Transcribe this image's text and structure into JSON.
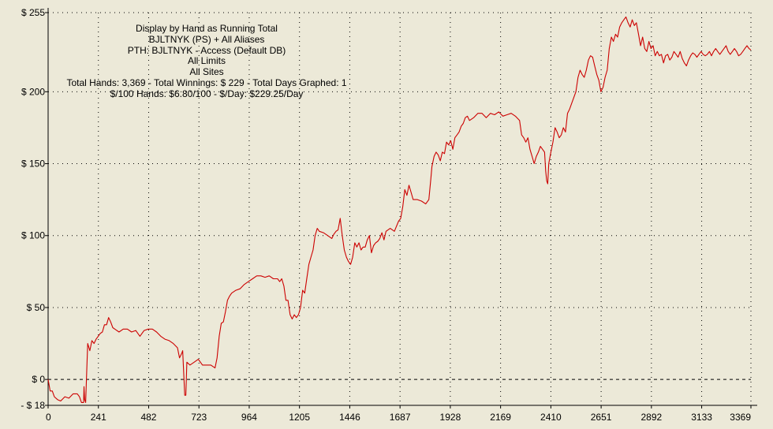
{
  "info": {
    "line1": "Display by Hand as Running Total",
    "line2": "BJLTNYK (PS) + All Aliases",
    "line3": "PTH: BJLTNYK - Access (Default DB)",
    "line4": "All Limits",
    "line5": "All Sites",
    "line6": "Total Hands: 3,369 - Total Winnings: $ 229 - Total Days Graphed: 1",
    "line7": "$/100 Hands: $6.80/100 - $/Day: $229.25/Day"
  },
  "colors": {
    "background": "#ECE9D8",
    "line": "#CC0000",
    "grid": "#000000"
  },
  "chart_data": {
    "type": "line",
    "grid": "dotted",
    "xlim": [
      0,
      3369
    ],
    "ylim": [
      -18,
      255
    ],
    "x_ticks": [
      0,
      241,
      482,
      723,
      964,
      1205,
      1446,
      1687,
      1928,
      2169,
      2410,
      2651,
      2892,
      3133,
      3369
    ],
    "x_tick_labels": [
      "0",
      "241",
      "482",
      "723",
      "964",
      "1205",
      "1446",
      "1687",
      "1928",
      "2169",
      "2410",
      "2651",
      "2892",
      "3133",
      "3369"
    ],
    "y_ticks": [
      255,
      200,
      150,
      100,
      50,
      0,
      -18
    ],
    "y_tick_labels": [
      "$ 255",
      "$ 200",
      "$ 150",
      "$ 100",
      "$ 50",
      "$ 0",
      "- $ 18"
    ],
    "series": [
      {
        "points": [
          [
            0,
            0
          ],
          [
            10,
            -8
          ],
          [
            20,
            -8
          ],
          [
            30,
            -12
          ],
          [
            45,
            -14
          ],
          [
            60,
            -15
          ],
          [
            80,
            -12
          ],
          [
            100,
            -13
          ],
          [
            120,
            -10
          ],
          [
            140,
            -10
          ],
          [
            150,
            -12
          ],
          [
            160,
            -16
          ],
          [
            170,
            -16
          ],
          [
            172,
            -5
          ],
          [
            175,
            -14
          ],
          [
            180,
            -16
          ],
          [
            185,
            5
          ],
          [
            190,
            25
          ],
          [
            200,
            20
          ],
          [
            210,
            27
          ],
          [
            220,
            25
          ],
          [
            230,
            28
          ],
          [
            240,
            30
          ],
          [
            250,
            32
          ],
          [
            260,
            33
          ],
          [
            270,
            38
          ],
          [
            280,
            38
          ],
          [
            290,
            43
          ],
          [
            300,
            40
          ],
          [
            310,
            36
          ],
          [
            320,
            35
          ],
          [
            340,
            33
          ],
          [
            360,
            35
          ],
          [
            380,
            35
          ],
          [
            400,
            33
          ],
          [
            420,
            34
          ],
          [
            440,
            30
          ],
          [
            460,
            34
          ],
          [
            480,
            35
          ],
          [
            500,
            35
          ],
          [
            520,
            33
          ],
          [
            540,
            30
          ],
          [
            560,
            28
          ],
          [
            580,
            27
          ],
          [
            600,
            25
          ],
          [
            620,
            22
          ],
          [
            630,
            15
          ],
          [
            640,
            18
          ],
          [
            645,
            20
          ],
          [
            655,
            -11
          ],
          [
            660,
            -11
          ],
          [
            665,
            12
          ],
          [
            680,
            10
          ],
          [
            700,
            12
          ],
          [
            720,
            14
          ],
          [
            740,
            10
          ],
          [
            760,
            10
          ],
          [
            780,
            10
          ],
          [
            800,
            8
          ],
          [
            810,
            15
          ],
          [
            820,
            30
          ],
          [
            830,
            39
          ],
          [
            840,
            40
          ],
          [
            850,
            47
          ],
          [
            860,
            55
          ],
          [
            870,
            58
          ],
          [
            880,
            60
          ],
          [
            900,
            62
          ],
          [
            920,
            63
          ],
          [
            940,
            66
          ],
          [
            960,
            68
          ],
          [
            980,
            70
          ],
          [
            1000,
            72
          ],
          [
            1020,
            72
          ],
          [
            1040,
            71
          ],
          [
            1060,
            72
          ],
          [
            1080,
            70
          ],
          [
            1100,
            70
          ],
          [
            1110,
            68
          ],
          [
            1120,
            70
          ],
          [
            1130,
            65
          ],
          [
            1140,
            55
          ],
          [
            1150,
            55
          ],
          [
            1160,
            45
          ],
          [
            1170,
            42
          ],
          [
            1180,
            45
          ],
          [
            1190,
            43
          ],
          [
            1200,
            45
          ],
          [
            1210,
            50
          ],
          [
            1220,
            62
          ],
          [
            1230,
            60
          ],
          [
            1240,
            70
          ],
          [
            1250,
            80
          ],
          [
            1260,
            85
          ],
          [
            1270,
            90
          ],
          [
            1280,
            100
          ],
          [
            1290,
            105
          ],
          [
            1300,
            103
          ],
          [
            1320,
            102
          ],
          [
            1340,
            100
          ],
          [
            1360,
            98
          ],
          [
            1370,
            101
          ],
          [
            1380,
            103
          ],
          [
            1390,
            104
          ],
          [
            1400,
            112
          ],
          [
            1410,
            100
          ],
          [
            1420,
            90
          ],
          [
            1430,
            85
          ],
          [
            1440,
            82
          ],
          [
            1450,
            80
          ],
          [
            1460,
            85
          ],
          [
            1470,
            95
          ],
          [
            1480,
            92
          ],
          [
            1490,
            95
          ],
          [
            1500,
            90
          ],
          [
            1510,
            92
          ],
          [
            1520,
            92
          ],
          [
            1530,
            97
          ],
          [
            1540,
            100
          ],
          [
            1550,
            88
          ],
          [
            1560,
            93
          ],
          [
            1570,
            95
          ],
          [
            1580,
            96
          ],
          [
            1590,
            98
          ],
          [
            1600,
            102
          ],
          [
            1610,
            97
          ],
          [
            1620,
            103
          ],
          [
            1640,
            105
          ],
          [
            1660,
            103
          ],
          [
            1680,
            110
          ],
          [
            1690,
            112
          ],
          [
            1700,
            120
          ],
          [
            1710,
            132
          ],
          [
            1720,
            128
          ],
          [
            1730,
            135
          ],
          [
            1740,
            130
          ],
          [
            1750,
            125
          ],
          [
            1770,
            125
          ],
          [
            1790,
            124
          ],
          [
            1810,
            122
          ],
          [
            1825,
            125
          ],
          [
            1835,
            140
          ],
          [
            1840,
            148
          ],
          [
            1850,
            155
          ],
          [
            1860,
            158
          ],
          [
            1870,
            156
          ],
          [
            1880,
            152
          ],
          [
            1890,
            158
          ],
          [
            1900,
            157
          ],
          [
            1910,
            165
          ],
          [
            1920,
            163
          ],
          [
            1930,
            166
          ],
          [
            1940,
            160
          ],
          [
            1950,
            168
          ],
          [
            1960,
            170
          ],
          [
            1970,
            172
          ],
          [
            1980,
            176
          ],
          [
            1990,
            178
          ],
          [
            2000,
            182
          ],
          [
            2010,
            183
          ],
          [
            2020,
            180
          ],
          [
            2040,
            182
          ],
          [
            2060,
            185
          ],
          [
            2080,
            185
          ],
          [
            2100,
            182
          ],
          [
            2120,
            185
          ],
          [
            2140,
            184
          ],
          [
            2160,
            186
          ],
          [
            2180,
            183
          ],
          [
            2200,
            184
          ],
          [
            2220,
            185
          ],
          [
            2240,
            183
          ],
          [
            2260,
            180
          ],
          [
            2270,
            170
          ],
          [
            2280,
            168
          ],
          [
            2290,
            165
          ],
          [
            2300,
            168
          ],
          [
            2310,
            160
          ],
          [
            2320,
            155
          ],
          [
            2330,
            150
          ],
          [
            2340,
            155
          ],
          [
            2350,
            158
          ],
          [
            2360,
            162
          ],
          [
            2370,
            160
          ],
          [
            2380,
            158
          ],
          [
            2385,
            145
          ],
          [
            2390,
            138
          ],
          [
            2395,
            136
          ],
          [
            2400,
            150
          ],
          [
            2410,
            158
          ],
          [
            2420,
            165
          ],
          [
            2430,
            175
          ],
          [
            2440,
            172
          ],
          [
            2450,
            168
          ],
          [
            2460,
            170
          ],
          [
            2470,
            175
          ],
          [
            2480,
            172
          ],
          [
            2490,
            185
          ],
          [
            2500,
            188
          ],
          [
            2510,
            192
          ],
          [
            2520,
            196
          ],
          [
            2530,
            200
          ],
          [
            2540,
            210
          ],
          [
            2550,
            215
          ],
          [
            2560,
            212
          ],
          [
            2570,
            210
          ],
          [
            2580,
            215
          ],
          [
            2590,
            222
          ],
          [
            2600,
            225
          ],
          [
            2610,
            224
          ],
          [
            2620,
            218
          ],
          [
            2630,
            212
          ],
          [
            2640,
            208
          ],
          [
            2650,
            200
          ],
          [
            2660,
            203
          ],
          [
            2670,
            210
          ],
          [
            2680,
            215
          ],
          [
            2690,
            230
          ],
          [
            2700,
            238
          ],
          [
            2710,
            235
          ],
          [
            2720,
            240
          ],
          [
            2730,
            238
          ],
          [
            2740,
            245
          ],
          [
            2750,
            248
          ],
          [
            2760,
            250
          ],
          [
            2770,
            252
          ],
          [
            2780,
            248
          ],
          [
            2790,
            245
          ],
          [
            2800,
            250
          ],
          [
            2810,
            246
          ],
          [
            2820,
            248
          ],
          [
            2830,
            240
          ],
          [
            2840,
            232
          ],
          [
            2850,
            238
          ],
          [
            2860,
            230
          ],
          [
            2870,
            228
          ],
          [
            2880,
            235
          ],
          [
            2890,
            230
          ],
          [
            2900,
            232
          ],
          [
            2910,
            225
          ],
          [
            2920,
            228
          ],
          [
            2930,
            225
          ],
          [
            2940,
            226
          ],
          [
            2950,
            220
          ],
          [
            2960,
            225
          ],
          [
            2970,
            226
          ],
          [
            2980,
            222
          ],
          [
            2990,
            224
          ],
          [
            3000,
            228
          ],
          [
            3010,
            226
          ],
          [
            3020,
            224
          ],
          [
            3030,
            228
          ],
          [
            3040,
            223
          ],
          [
            3050,
            220
          ],
          [
            3060,
            218
          ],
          [
            3070,
            222
          ],
          [
            3080,
            225
          ],
          [
            3090,
            227
          ],
          [
            3100,
            226
          ],
          [
            3110,
            224
          ],
          [
            3120,
            226
          ],
          [
            3130,
            228
          ],
          [
            3140,
            226
          ],
          [
            3150,
            225
          ],
          [
            3160,
            226
          ],
          [
            3170,
            228
          ],
          [
            3180,
            225
          ],
          [
            3190,
            228
          ],
          [
            3200,
            230
          ],
          [
            3210,
            228
          ],
          [
            3220,
            226
          ],
          [
            3230,
            228
          ],
          [
            3240,
            230
          ],
          [
            3250,
            232
          ],
          [
            3260,
            228
          ],
          [
            3270,
            226
          ],
          [
            3280,
            228
          ],
          [
            3290,
            230
          ],
          [
            3300,
            228
          ],
          [
            3310,
            225
          ],
          [
            3320,
            226
          ],
          [
            3330,
            228
          ],
          [
            3340,
            230
          ],
          [
            3350,
            232
          ],
          [
            3360,
            230
          ],
          [
            3369,
            229
          ]
        ]
      }
    ]
  }
}
